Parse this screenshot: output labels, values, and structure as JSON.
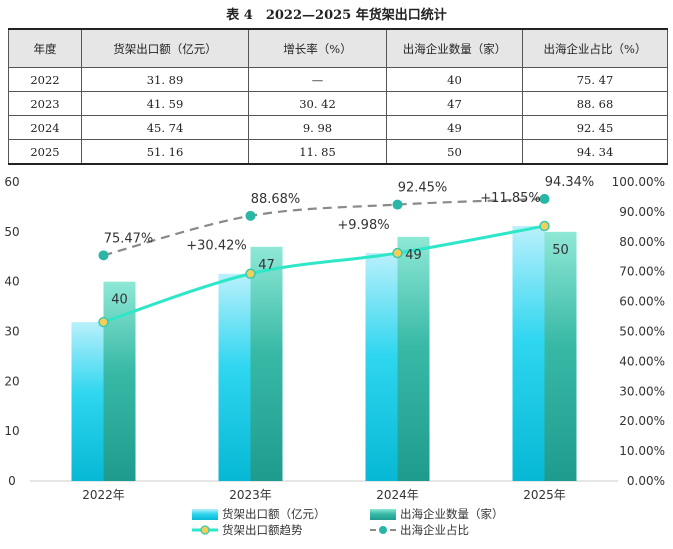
{
  "table": {
    "title": "表 4　2022—2025 年货架出口统计",
    "headers": [
      "年度",
      "货架出口额（亿元）",
      "增长率（%）",
      "出海企业数量（家）",
      "出海企业占比（%）"
    ],
    "rows": [
      [
        "2022",
        "31. 89",
        "—",
        "40",
        "75. 47"
      ],
      [
        "2023",
        "41. 59",
        "30. 42",
        "47",
        "88. 68"
      ],
      [
        "2024",
        "45. 74",
        "9. 98",
        "49",
        "92. 45"
      ],
      [
        "2025",
        "51. 16",
        "11. 85",
        "50",
        "94. 34"
      ]
    ]
  },
  "chart_data": {
    "type": "bar",
    "categories": [
      "2022年",
      "2023年",
      "2024年",
      "2025年"
    ],
    "left_axis": {
      "ylim": [
        0,
        60
      ],
      "ticks": [
        "0",
        "10",
        "20",
        "30",
        "40",
        "50",
        "60"
      ]
    },
    "right_axis": {
      "ylim": [
        0,
        100
      ],
      "ticks": [
        "0.00%",
        "10.00%",
        "20.00%",
        "30.00%",
        "40.00%",
        "50.00%",
        "60.00%",
        "70.00%",
        "80.00%",
        "90.00%",
        "100.00%"
      ]
    },
    "series": [
      {
        "name": "货架出口额（亿元）",
        "kind": "bar",
        "axis": "left",
        "values": [
          31.89,
          41.59,
          45.74,
          51.16
        ],
        "color": "#1fc3de"
      },
      {
        "name": "出海企业数量（家）",
        "kind": "bar",
        "axis": "left",
        "values": [
          40,
          47,
          49,
          50
        ],
        "labels": [
          "40",
          "47",
          "49",
          "50"
        ],
        "color": "#2aa89a"
      },
      {
        "name": "货架出口额趋势",
        "kind": "line",
        "axis": "left",
        "values": [
          31.89,
          41.59,
          45.74,
          51.16
        ],
        "labels": [
          "",
          "+30.42%",
          "+9.98%",
          "+11.85%"
        ],
        "color": "#2ee6c8"
      },
      {
        "name": "出海企业占比",
        "kind": "dashed-line",
        "axis": "right",
        "values": [
          75.47,
          88.68,
          92.45,
          94.34
        ],
        "labels": [
          "75.47%",
          "88.68%",
          "92.45%",
          "94.34%"
        ],
        "color": "#888888"
      }
    ],
    "legend": {
      "placement": "bottom"
    },
    "grid": false
  }
}
